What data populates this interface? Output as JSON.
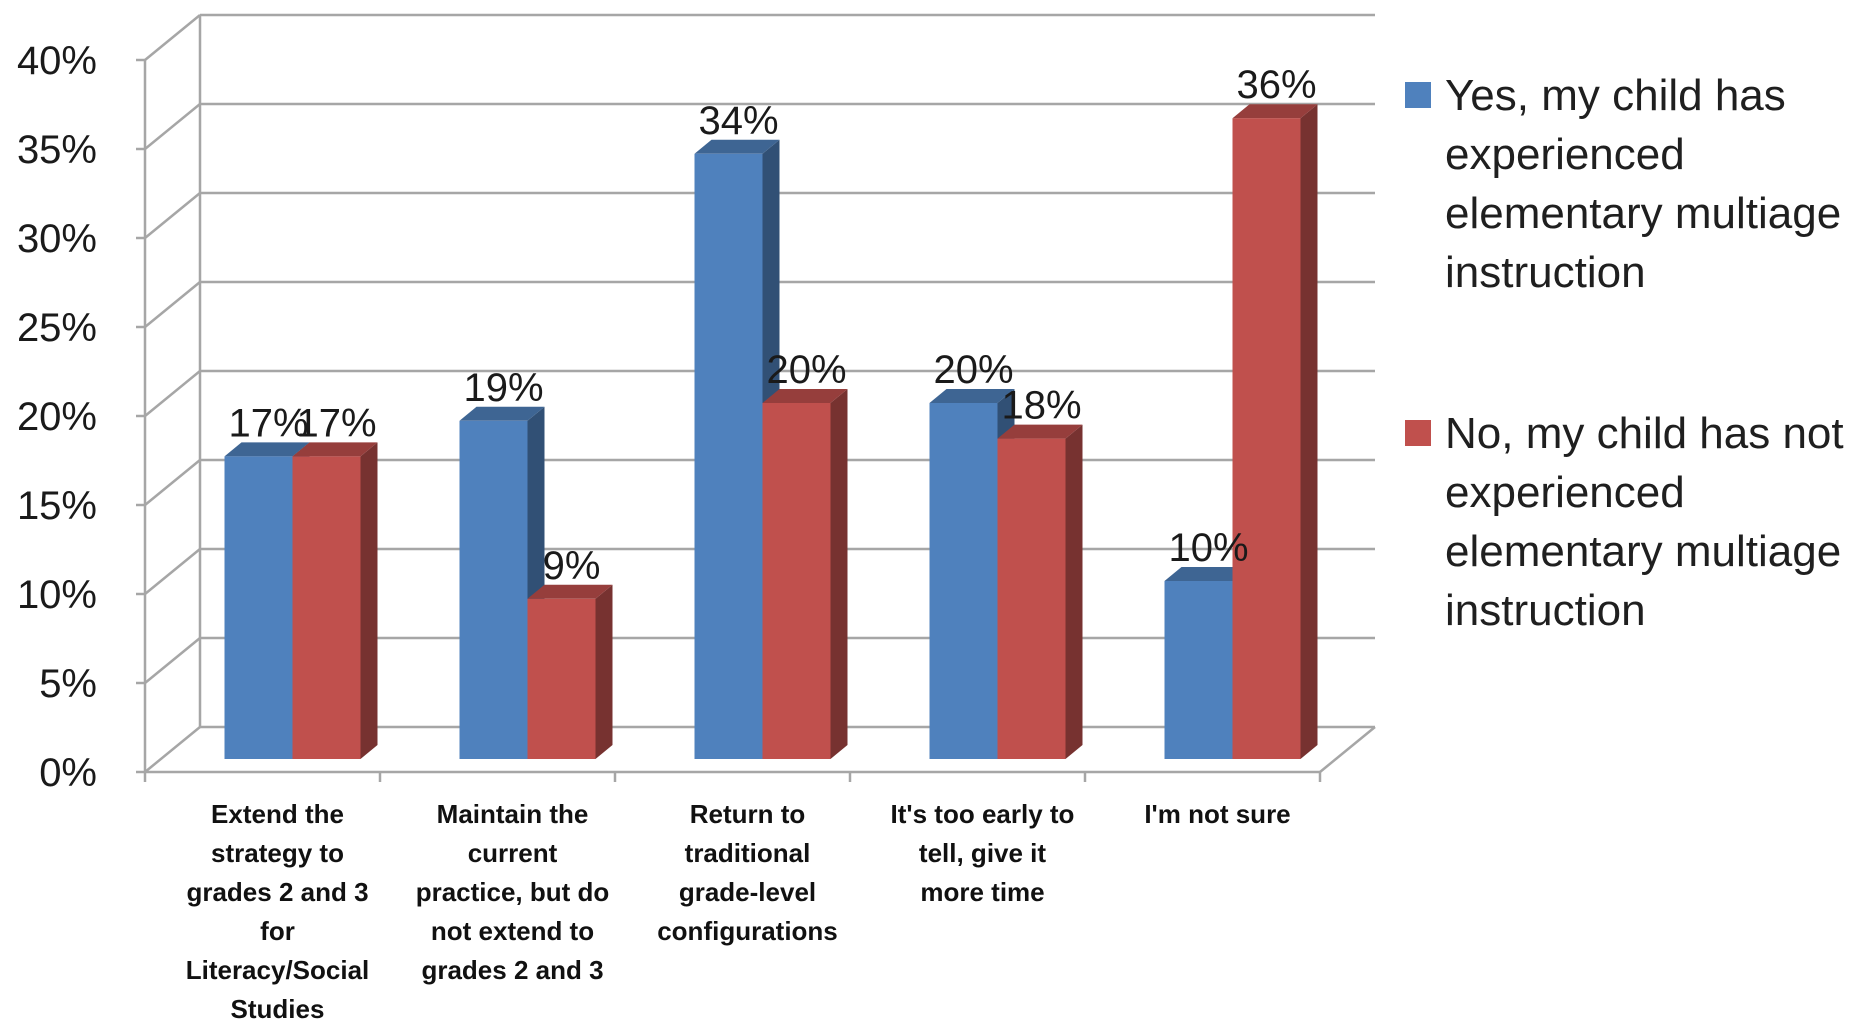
{
  "chart_data": {
    "type": "bar",
    "categories": [
      "Extend the strategy to grades 2 and 3 for Literacy/Social Studies",
      "Maintain the current practice, but do not extend to grades 2 and 3",
      "Return to traditional grade-level configurations",
      "It's too early to tell, give it more time",
      "I'm not sure"
    ],
    "category_lines": [
      [
        "Extend the",
        "strategy to",
        "grades 2 and 3",
        "for",
        "Literacy/Social",
        "Studies"
      ],
      [
        "Maintain the",
        "current",
        "practice, but do",
        "not extend to",
        "grades 2 and 3"
      ],
      [
        "Return to",
        "traditional",
        "grade-level",
        "configurations"
      ],
      [
        "It's too early to",
        "tell, give it",
        "more time"
      ],
      [
        "I'm not sure"
      ]
    ],
    "series": [
      {
        "name": "Yes, my child has experienced elementary multiage instruction",
        "values": [
          17,
          19,
          34,
          20,
          10
        ],
        "labels": [
          "17%",
          "19%",
          "34%",
          "20%",
          "10%"
        ],
        "color": "#4F81BD"
      },
      {
        "name": "No, my child has not experienced elementary multiage instruction",
        "values": [
          17,
          9,
          20,
          18,
          36
        ],
        "labels": [
          "17%",
          "9%",
          "20%",
          "18%",
          "36%"
        ],
        "color": "#C0504D"
      }
    ],
    "legend_lines": [
      [
        "Yes, my child has",
        "experienced",
        "elementary multiage",
        "instruction"
      ],
      [
        "No, my child has not",
        "experienced",
        "elementary multiage",
        "instruction"
      ]
    ],
    "y_ticks": [
      "0%",
      "5%",
      "10%",
      "15%",
      "20%",
      "25%",
      "30%",
      "35%",
      "40%"
    ],
    "ylim": [
      0,
      40
    ],
    "grid": true,
    "legend_position": "right",
    "projection": "3d"
  }
}
